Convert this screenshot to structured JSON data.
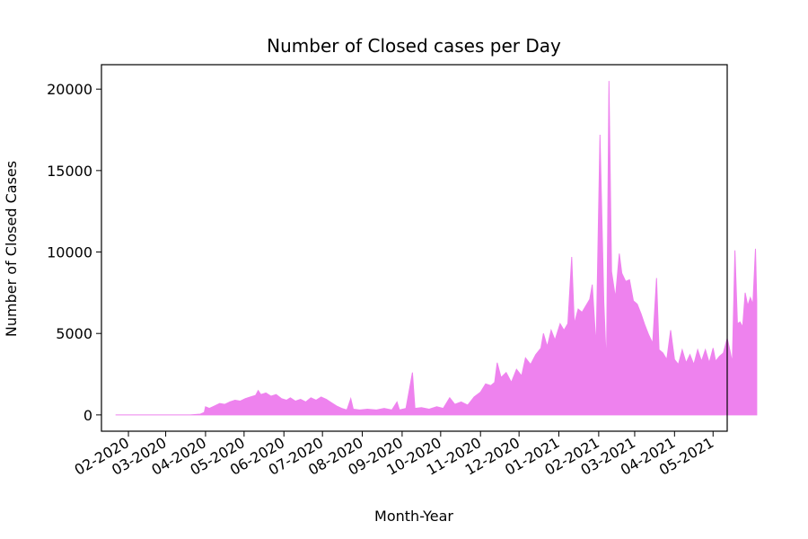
{
  "chart_data": {
    "type": "area",
    "title": "Number of Closed cases per Day",
    "xlabel": "Month-Year",
    "ylabel": "Number of Closed Cases",
    "series_color": "#ee82ee",
    "x_tick_labels": [
      "02-2020",
      "03-2020",
      "04-2020",
      "05-2020",
      "06-2020",
      "07-2020",
      "08-2020",
      "09-2020",
      "10-2020",
      "11-2020",
      "12-2020",
      "01-2021",
      "02-2021",
      "03-2021",
      "04-2021",
      "05-2021"
    ],
    "x_tick_dates": [
      "2020-02-01",
      "2020-03-01",
      "2020-04-01",
      "2020-05-01",
      "2020-06-01",
      "2020-07-01",
      "2020-08-01",
      "2020-09-01",
      "2020-10-01",
      "2020-11-01",
      "2020-12-01",
      "2021-01-01",
      "2021-02-01",
      "2021-03-01",
      "2021-04-01",
      "2021-05-01"
    ],
    "y_ticks": [
      0,
      5000,
      10000,
      15000,
      20000
    ],
    "xlim": [
      "2020-01-11",
      "2021-05-12"
    ],
    "ylim": [
      -1000,
      21500
    ],
    "grid": false,
    "series": [
      {
        "values": [
          [
            "2020-01-22",
            0
          ],
          [
            "2020-03-20",
            0
          ],
          [
            "2020-03-28",
            50
          ],
          [
            "2020-03-31",
            150
          ],
          [
            "2020-04-01",
            500
          ],
          [
            "2020-04-04",
            400
          ],
          [
            "2020-04-08",
            550
          ],
          [
            "2020-04-12",
            700
          ],
          [
            "2020-04-16",
            650
          ],
          [
            "2020-04-20",
            800
          ],
          [
            "2020-04-24",
            900
          ],
          [
            "2020-04-28",
            850
          ],
          [
            "2020-05-02",
            1000
          ],
          [
            "2020-05-06",
            1100
          ],
          [
            "2020-05-10",
            1200
          ],
          [
            "2020-05-12",
            1500
          ],
          [
            "2020-05-14",
            1250
          ],
          [
            "2020-05-18",
            1350
          ],
          [
            "2020-05-22",
            1150
          ],
          [
            "2020-05-26",
            1250
          ],
          [
            "2020-05-30",
            1000
          ],
          [
            "2020-06-03",
            900
          ],
          [
            "2020-06-06",
            1050
          ],
          [
            "2020-06-10",
            850
          ],
          [
            "2020-06-14",
            950
          ],
          [
            "2020-06-18",
            800
          ],
          [
            "2020-06-22",
            1050
          ],
          [
            "2020-06-26",
            900
          ],
          [
            "2020-06-30",
            1100
          ],
          [
            "2020-07-04",
            950
          ],
          [
            "2020-07-08",
            750
          ],
          [
            "2020-07-12",
            550
          ],
          [
            "2020-07-16",
            400
          ],
          [
            "2020-07-20",
            300
          ],
          [
            "2020-07-23",
            1000
          ],
          [
            "2020-07-25",
            350
          ],
          [
            "2020-07-30",
            300
          ],
          [
            "2020-08-05",
            350
          ],
          [
            "2020-08-12",
            300
          ],
          [
            "2020-08-18",
            400
          ],
          [
            "2020-08-24",
            300
          ],
          [
            "2020-08-28",
            800
          ],
          [
            "2020-08-30",
            300
          ],
          [
            "2020-09-04",
            400
          ],
          [
            "2020-09-09",
            2600
          ],
          [
            "2020-09-11",
            400
          ],
          [
            "2020-09-16",
            450
          ],
          [
            "2020-09-22",
            350
          ],
          [
            "2020-09-28",
            500
          ],
          [
            "2020-10-03",
            400
          ],
          [
            "2020-10-08",
            1050
          ],
          [
            "2020-10-12",
            650
          ],
          [
            "2020-10-17",
            800
          ],
          [
            "2020-10-22",
            600
          ],
          [
            "2020-10-27",
            1100
          ],
          [
            "2020-11-01",
            1400
          ],
          [
            "2020-11-05",
            1900
          ],
          [
            "2020-11-09",
            1800
          ],
          [
            "2020-11-12",
            2000
          ],
          [
            "2020-11-14",
            3200
          ],
          [
            "2020-11-17",
            2300
          ],
          [
            "2020-11-21",
            2600
          ],
          [
            "2020-11-25",
            2000
          ],
          [
            "2020-11-29",
            2800
          ],
          [
            "2020-12-03",
            2400
          ],
          [
            "2020-12-06",
            3500
          ],
          [
            "2020-12-10",
            3100
          ],
          [
            "2020-12-14",
            3700
          ],
          [
            "2020-12-18",
            4100
          ],
          [
            "2020-12-20",
            5000
          ],
          [
            "2020-12-23",
            4200
          ],
          [
            "2020-12-26",
            5200
          ],
          [
            "2020-12-29",
            4600
          ],
          [
            "2021-01-02",
            5600
          ],
          [
            "2021-01-05",
            5200
          ],
          [
            "2021-01-08",
            5600
          ],
          [
            "2021-01-11",
            9700
          ],
          [
            "2021-01-13",
            5600
          ],
          [
            "2021-01-16",
            6500
          ],
          [
            "2021-01-19",
            6300
          ],
          [
            "2021-01-22",
            6700
          ],
          [
            "2021-01-25",
            7100
          ],
          [
            "2021-01-27",
            8000
          ],
          [
            "2021-01-30",
            4200
          ],
          [
            "2021-02-02",
            17200
          ],
          [
            "2021-02-05",
            6900
          ],
          [
            "2021-02-07",
            3000
          ],
          [
            "2021-02-09",
            20500
          ],
          [
            "2021-02-11",
            8800
          ],
          [
            "2021-02-14",
            7200
          ],
          [
            "2021-02-17",
            9900
          ],
          [
            "2021-02-19",
            8700
          ],
          [
            "2021-02-22",
            8200
          ],
          [
            "2021-02-25",
            8300
          ],
          [
            "2021-02-28",
            7000
          ],
          [
            "2021-03-03",
            6800
          ],
          [
            "2021-03-06",
            6200
          ],
          [
            "2021-03-09",
            5500
          ],
          [
            "2021-03-12",
            4900
          ],
          [
            "2021-03-15",
            4400
          ],
          [
            "2021-03-18",
            8400
          ],
          [
            "2021-03-20",
            4000
          ],
          [
            "2021-03-23",
            3800
          ],
          [
            "2021-03-26",
            3400
          ],
          [
            "2021-03-29",
            5200
          ],
          [
            "2021-04-01",
            3400
          ],
          [
            "2021-04-04",
            3100
          ],
          [
            "2021-04-07",
            4000
          ],
          [
            "2021-04-10",
            3200
          ],
          [
            "2021-04-13",
            3700
          ],
          [
            "2021-04-16",
            3100
          ],
          [
            "2021-04-19",
            4000
          ],
          [
            "2021-04-22",
            3300
          ],
          [
            "2021-04-25",
            4000
          ],
          [
            "2021-04-28",
            3200
          ],
          [
            "2021-05-01",
            4100
          ],
          [
            "2021-05-03",
            3300
          ],
          [
            "2021-05-06",
            3600
          ],
          [
            "2021-05-09",
            3800
          ],
          [
            "2021-05-12",
            4700
          ],
          [
            "2021-05-14",
            4000
          ],
          [
            "2021-05-16",
            3200
          ],
          [
            "2021-05-18",
            10100
          ],
          [
            "2021-05-20",
            5600
          ],
          [
            "2021-05-22",
            5700
          ],
          [
            "2021-05-24",
            5400
          ],
          [
            "2021-05-26",
            7500
          ],
          [
            "2021-05-28",
            6700
          ],
          [
            "2021-05-30",
            7200
          ],
          [
            "2021-06-01",
            6800
          ],
          [
            "2021-06-03",
            10200
          ],
          [
            "2021-06-04",
            7000
          ],
          [
            "2021-06-04",
            0
          ]
        ]
      }
    ]
  }
}
